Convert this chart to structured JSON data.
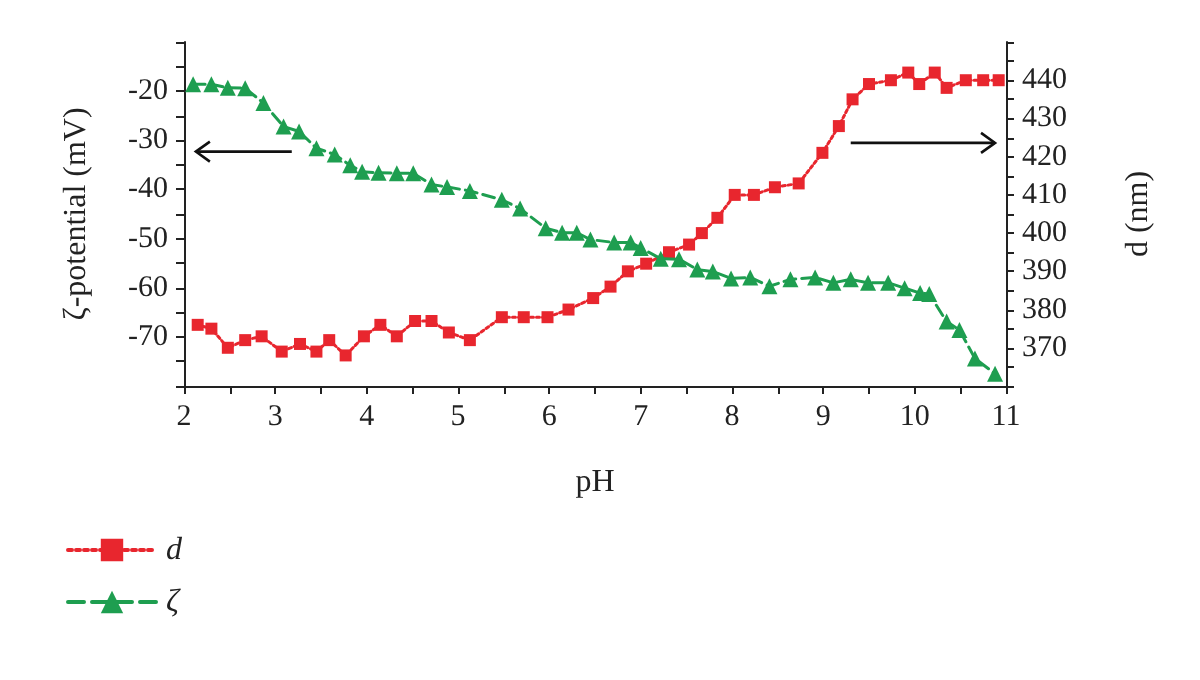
{
  "chart_data": {
    "type": "line",
    "xlabel": "pH",
    "ylabel": "ζ-potential (mV)",
    "y2label": "d (nm)",
    "xlim": [
      2,
      11
    ],
    "ylim": [
      -80,
      -10
    ],
    "y2lim": [
      360,
      450
    ],
    "xticks": [
      2,
      {
        "value": 2.5,
        "label": null
      },
      3,
      {
        "value": 3.5,
        "label": null
      },
      4,
      {
        "value": 4.5,
        "label": null
      },
      5,
      {
        "value": 5.5,
        "label": null
      },
      6,
      {
        "value": 6.5,
        "label": null
      },
      7,
      {
        "value": 7.5,
        "label": null
      },
      8,
      {
        "value": 8.5,
        "label": null
      },
      9,
      {
        "value": 9.5,
        "label": null
      },
      10,
      {
        "value": 10.5,
        "label": null
      },
      11
    ],
    "yticks": [
      {
        "value": -80,
        "label": null
      },
      {
        "value": -75,
        "label": null
      },
      -70,
      {
        "value": -65,
        "label": null
      },
      -60,
      {
        "value": -55,
        "label": null
      },
      -50,
      {
        "value": -45,
        "label": null
      },
      -40,
      {
        "value": -35,
        "label": null
      },
      -30,
      {
        "value": -25,
        "label": null
      },
      -20,
      {
        "value": -15,
        "label": null
      },
      {
        "value": -10,
        "label": null
      }
    ],
    "y2ticks": [
      {
        "value": 360,
        "label": null
      },
      {
        "value": 365,
        "label": null
      },
      370,
      {
        "value": 375,
        "label": null
      },
      380,
      {
        "value": 385,
        "label": null
      },
      390,
      {
        "value": 395,
        "label": null
      },
      400,
      {
        "value": 405,
        "label": null
      },
      410,
      {
        "value": 415,
        "label": null
      },
      420,
      {
        "value": 425,
        "label": null
      },
      430,
      {
        "value": 435,
        "label": null
      },
      440,
      {
        "value": 445,
        "label": null
      },
      {
        "value": 450,
        "label": null
      }
    ],
    "grid": false,
    "legend": "bottom left",
    "series": [
      {
        "name": "d",
        "color": "#e8262e",
        "axis": "y2",
        "marker": "square",
        "line_style": "dotted",
        "x": [
          2.15,
          2.3,
          2.48,
          2.67,
          2.85,
          3.07,
          3.27,
          3.45,
          3.59,
          3.77,
          3.97,
          4.15,
          4.33,
          4.53,
          4.71,
          4.9,
          5.13,
          5.48,
          5.72,
          5.98,
          6.21,
          6.48,
          6.67,
          6.86,
          7.06,
          7.31,
          7.53,
          7.67,
          7.84,
          8.03,
          8.24,
          8.47,
          8.73,
          8.99,
          9.17,
          9.32,
          9.5,
          9.74,
          9.93,
          10.05,
          10.22,
          10.35,
          10.56,
          10.75,
          10.92
        ],
        "values": [
          376,
          375,
          370,
          372,
          373,
          369,
          371,
          369,
          372,
          368,
          373,
          376,
          373,
          377,
          377,
          374,
          372,
          378,
          378,
          378,
          380,
          383,
          386,
          390,
          392,
          395,
          397,
          400,
          404,
          410,
          410,
          412,
          413,
          421,
          428,
          435,
          439,
          440,
          442,
          439,
          442,
          438,
          440,
          440,
          440
        ]
      },
      {
        "name": "ζ",
        "color": "#1e9e50",
        "marker": "triangle",
        "line_style": "dashed",
        "x": [
          2.1,
          2.3,
          2.48,
          2.67,
          2.87,
          3.09,
          3.26,
          3.45,
          3.65,
          3.82,
          3.95,
          4.13,
          4.33,
          4.51,
          4.71,
          4.88,
          5.13,
          5.48,
          5.68,
          5.96,
          6.14,
          6.3,
          6.45,
          6.71,
          6.89,
          7.0,
          7.22,
          7.42,
          7.62,
          7.79,
          7.99,
          8.2,
          8.41,
          8.64,
          8.91,
          9.11,
          9.3,
          9.49,
          9.71,
          9.89,
          10.06,
          10.16,
          10.35,
          10.49,
          10.66,
          10.88
        ],
        "values": [
          -18.6,
          -18.6,
          -19.3,
          -19.4,
          -22.4,
          -27.2,
          -28.2,
          -31.6,
          -32.9,
          -35.1,
          -36.4,
          -36.6,
          -36.7,
          -36.7,
          -39.0,
          -39.5,
          -40.3,
          -42.1,
          -43.9,
          -47.9,
          -48.8,
          -48.8,
          -50.2,
          -50.8,
          -50.8,
          -51.9,
          -54.1,
          -54.2,
          -56.3,
          -56.7,
          -58.1,
          -57.9,
          -59.7,
          -58.3,
          -57.9,
          -59.0,
          -58.3,
          -59.0,
          -59.0,
          -60.1,
          -61.1,
          -61.3,
          -66.9,
          -68.6,
          -74.4,
          -77.5
        ]
      }
    ]
  }
}
